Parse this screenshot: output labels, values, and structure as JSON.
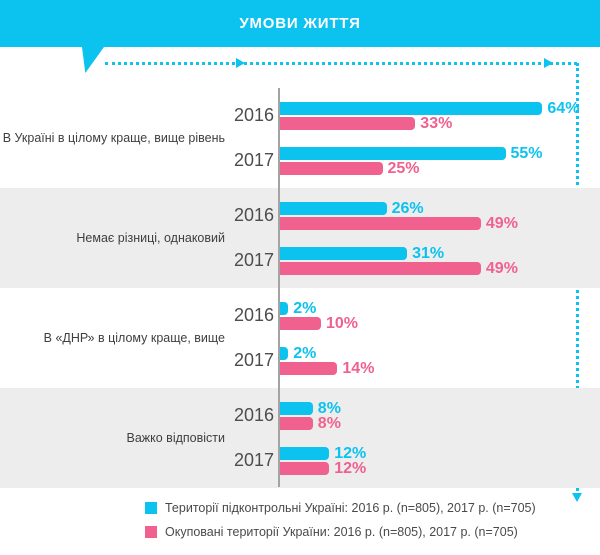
{
  "header": {
    "title": "УМОВИ ЖИТТЯ"
  },
  "colors": {
    "accent_cyan": "#0cc2ef",
    "pink": "#f0618f",
    "section_gray": "#ededed",
    "axis_gray": "#a3a3a3"
  },
  "chart_data": {
    "type": "bar",
    "orientation": "horizontal",
    "unit": "%",
    "value_axis_range": [
      0,
      64
    ],
    "grid": false,
    "series": [
      {
        "name": "Території підконтрольні Україні",
        "color": "#0cc2ef"
      },
      {
        "name": "Окуповані території України",
        "color": "#f0618f"
      }
    ],
    "categories": [
      {
        "label": "В Україні в цілому краще, вище рівень",
        "groups": [
          {
            "year": "2016",
            "values": [
              64,
              33
            ]
          },
          {
            "year": "2017",
            "values": [
              55,
              25
            ]
          }
        ]
      },
      {
        "label": "Немає різниці, однаковий",
        "groups": [
          {
            "year": "2016",
            "values": [
              26,
              49
            ]
          },
          {
            "year": "2017",
            "values": [
              31,
              49
            ]
          }
        ]
      },
      {
        "label": "В «ДНР» в цілому краще, вище",
        "groups": [
          {
            "year": "2016",
            "values": [
              2,
              10
            ]
          },
          {
            "year": "2017",
            "values": [
              2,
              14
            ]
          }
        ]
      },
      {
        "label": "Важко відповісти",
        "groups": [
          {
            "year": "2016",
            "values": [
              8,
              8
            ]
          },
          {
            "year": "2017",
            "values": [
              12,
              12
            ]
          }
        ]
      }
    ]
  },
  "legend": {
    "items": [
      {
        "swatch_color": "#0cc2ef",
        "label": "Території підконтрольні Україні:  2016 р. (n=805), 2017 р. (n=705)"
      },
      {
        "swatch_color": "#f0618f",
        "label": "Окуповані території України: 2016 р. (n=805), 2017 р. (n=705)"
      }
    ]
  }
}
